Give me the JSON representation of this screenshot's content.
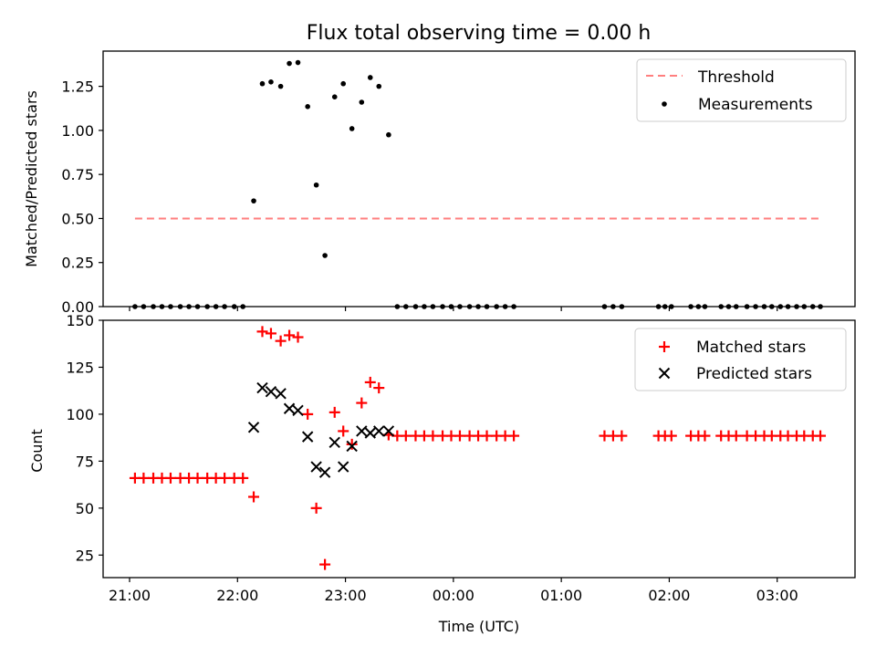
{
  "title": "Flux total observing time = 0.00 h",
  "x_ticks": [
    "21:00",
    "22:00",
    "23:00",
    "00:00",
    "01:00",
    "02:00",
    "03:00"
  ],
  "chart_data": [
    {
      "type": "scatter",
      "ylabel": "Matched/Predicted stars",
      "ylim": [
        0,
        1.45
      ],
      "yticks": [
        "0.00",
        "0.25",
        "0.50",
        "0.75",
        "1.00",
        "1.25"
      ],
      "legend": "top-right",
      "threshold": {
        "name": "Threshold",
        "color": "#ff7f7f",
        "value": 0.5,
        "x_range": [
          21.05,
          27.4
        ]
      },
      "series": [
        {
          "name": "Measurements",
          "color": "#000000",
          "points": [
            [
              21.05,
              0
            ],
            [
              21.13,
              0
            ],
            [
              21.22,
              0
            ],
            [
              21.3,
              0
            ],
            [
              21.38,
              0
            ],
            [
              21.47,
              0
            ],
            [
              21.55,
              0
            ],
            [
              21.63,
              0
            ],
            [
              21.72,
              0
            ],
            [
              21.8,
              0
            ],
            [
              21.88,
              0
            ],
            [
              21.97,
              0
            ],
            [
              22.05,
              0
            ],
            [
              22.15,
              0.6
            ],
            [
              22.23,
              1.265
            ],
            [
              22.31,
              1.275
            ],
            [
              22.4,
              1.25
            ],
            [
              22.48,
              1.38
            ],
            [
              22.56,
              1.385
            ],
            [
              22.65,
              1.135
            ],
            [
              22.73,
              0.69
            ],
            [
              22.81,
              0.29
            ],
            [
              22.9,
              1.19
            ],
            [
              22.98,
              1.265
            ],
            [
              23.06,
              1.01
            ],
            [
              23.15,
              1.16
            ],
            [
              23.23,
              1.3
            ],
            [
              23.31,
              1.25
            ],
            [
              23.4,
              0.975
            ],
            [
              23.48,
              0
            ],
            [
              23.56,
              0
            ],
            [
              23.65,
              0
            ],
            [
              23.73,
              0
            ],
            [
              23.81,
              0
            ],
            [
              23.9,
              0
            ],
            [
              23.98,
              0
            ],
            [
              24.06,
              0
            ],
            [
              24.15,
              0
            ],
            [
              24.23,
              0
            ],
            [
              24.31,
              0
            ],
            [
              24.4,
              0
            ],
            [
              24.48,
              0
            ],
            [
              24.56,
              0
            ],
            [
              25.4,
              0
            ],
            [
              25.48,
              0
            ],
            [
              25.56,
              0
            ],
            [
              25.9,
              0
            ],
            [
              25.96,
              0
            ],
            [
              26.02,
              0
            ],
            [
              26.2,
              0
            ],
            [
              26.27,
              0
            ],
            [
              26.33,
              0
            ],
            [
              26.48,
              0
            ],
            [
              26.55,
              0
            ],
            [
              26.62,
              0
            ],
            [
              26.72,
              0
            ],
            [
              26.8,
              0
            ],
            [
              26.88,
              0
            ],
            [
              26.95,
              0
            ],
            [
              27.03,
              0
            ],
            [
              27.1,
              0
            ],
            [
              27.18,
              0
            ],
            [
              27.25,
              0
            ],
            [
              27.33,
              0
            ],
            [
              27.4,
              0
            ]
          ]
        }
      ]
    },
    {
      "type": "scatter",
      "xlabel": "Time (UTC)",
      "ylabel": "Count",
      "ylim": [
        13,
        150
      ],
      "yticks": [
        "25",
        "50",
        "75",
        "100",
        "125",
        "150"
      ],
      "legend": "top-right",
      "series": [
        {
          "name": "Matched stars",
          "color": "#ff0000",
          "marker": "plus",
          "points": [
            [
              21.05,
              66
            ],
            [
              21.13,
              66
            ],
            [
              21.22,
              66
            ],
            [
              21.3,
              66
            ],
            [
              21.38,
              66
            ],
            [
              21.47,
              66
            ],
            [
              21.55,
              66
            ],
            [
              21.63,
              66
            ],
            [
              21.72,
              66
            ],
            [
              21.8,
              66
            ],
            [
              21.88,
              66
            ],
            [
              21.97,
              66
            ],
            [
              22.05,
              66
            ],
            [
              22.15,
              56
            ],
            [
              22.23,
              144
            ],
            [
              22.31,
              143
            ],
            [
              22.4,
              139
            ],
            [
              22.48,
              142
            ],
            [
              22.56,
              141
            ],
            [
              22.65,
              100
            ],
            [
              22.73,
              50
            ],
            [
              22.81,
              20
            ],
            [
              22.9,
              101
            ],
            [
              22.98,
              91
            ],
            [
              23.06,
              84
            ],
            [
              23.15,
              106
            ],
            [
              23.23,
              117
            ],
            [
              23.31,
              114
            ],
            [
              23.4,
              89
            ],
            [
              23.48,
              88.5
            ],
            [
              23.56,
              88.5
            ],
            [
              23.65,
              88.5
            ],
            [
              23.73,
              88.5
            ],
            [
              23.81,
              88.5
            ],
            [
              23.9,
              88.5
            ],
            [
              23.98,
              88.5
            ],
            [
              24.06,
              88.5
            ],
            [
              24.15,
              88.5
            ],
            [
              24.23,
              88.5
            ],
            [
              24.31,
              88.5
            ],
            [
              24.4,
              88.5
            ],
            [
              24.48,
              88.5
            ],
            [
              24.56,
              88.5
            ],
            [
              25.4,
              88.5
            ],
            [
              25.48,
              88.5
            ],
            [
              25.56,
              88.5
            ],
            [
              25.9,
              88.5
            ],
            [
              25.96,
              88.5
            ],
            [
              26.02,
              88.5
            ],
            [
              26.2,
              88.5
            ],
            [
              26.27,
              88.5
            ],
            [
              26.33,
              88.5
            ],
            [
              26.48,
              88.5
            ],
            [
              26.55,
              88.5
            ],
            [
              26.62,
              88.5
            ],
            [
              26.72,
              88.5
            ],
            [
              26.8,
              88.5
            ],
            [
              26.88,
              88.5
            ],
            [
              26.95,
              88.5
            ],
            [
              27.03,
              88.5
            ],
            [
              27.1,
              88.5
            ],
            [
              27.18,
              88.5
            ],
            [
              27.25,
              88.5
            ],
            [
              27.33,
              88.5
            ],
            [
              27.4,
              88.5
            ]
          ]
        },
        {
          "name": "Predicted stars",
          "color": "#000000",
          "marker": "x",
          "points": [
            [
              22.15,
              93
            ],
            [
              22.23,
              114
            ],
            [
              22.31,
              112
            ],
            [
              22.4,
              111
            ],
            [
              22.48,
              103
            ],
            [
              22.56,
              102
            ],
            [
              22.65,
              88
            ],
            [
              22.73,
              72
            ],
            [
              22.81,
              69
            ],
            [
              22.9,
              85
            ],
            [
              22.98,
              72
            ],
            [
              23.06,
              83
            ],
            [
              23.15,
              91
            ],
            [
              23.23,
              90
            ],
            [
              23.31,
              91
            ],
            [
              23.4,
              91
            ]
          ]
        }
      ]
    }
  ]
}
